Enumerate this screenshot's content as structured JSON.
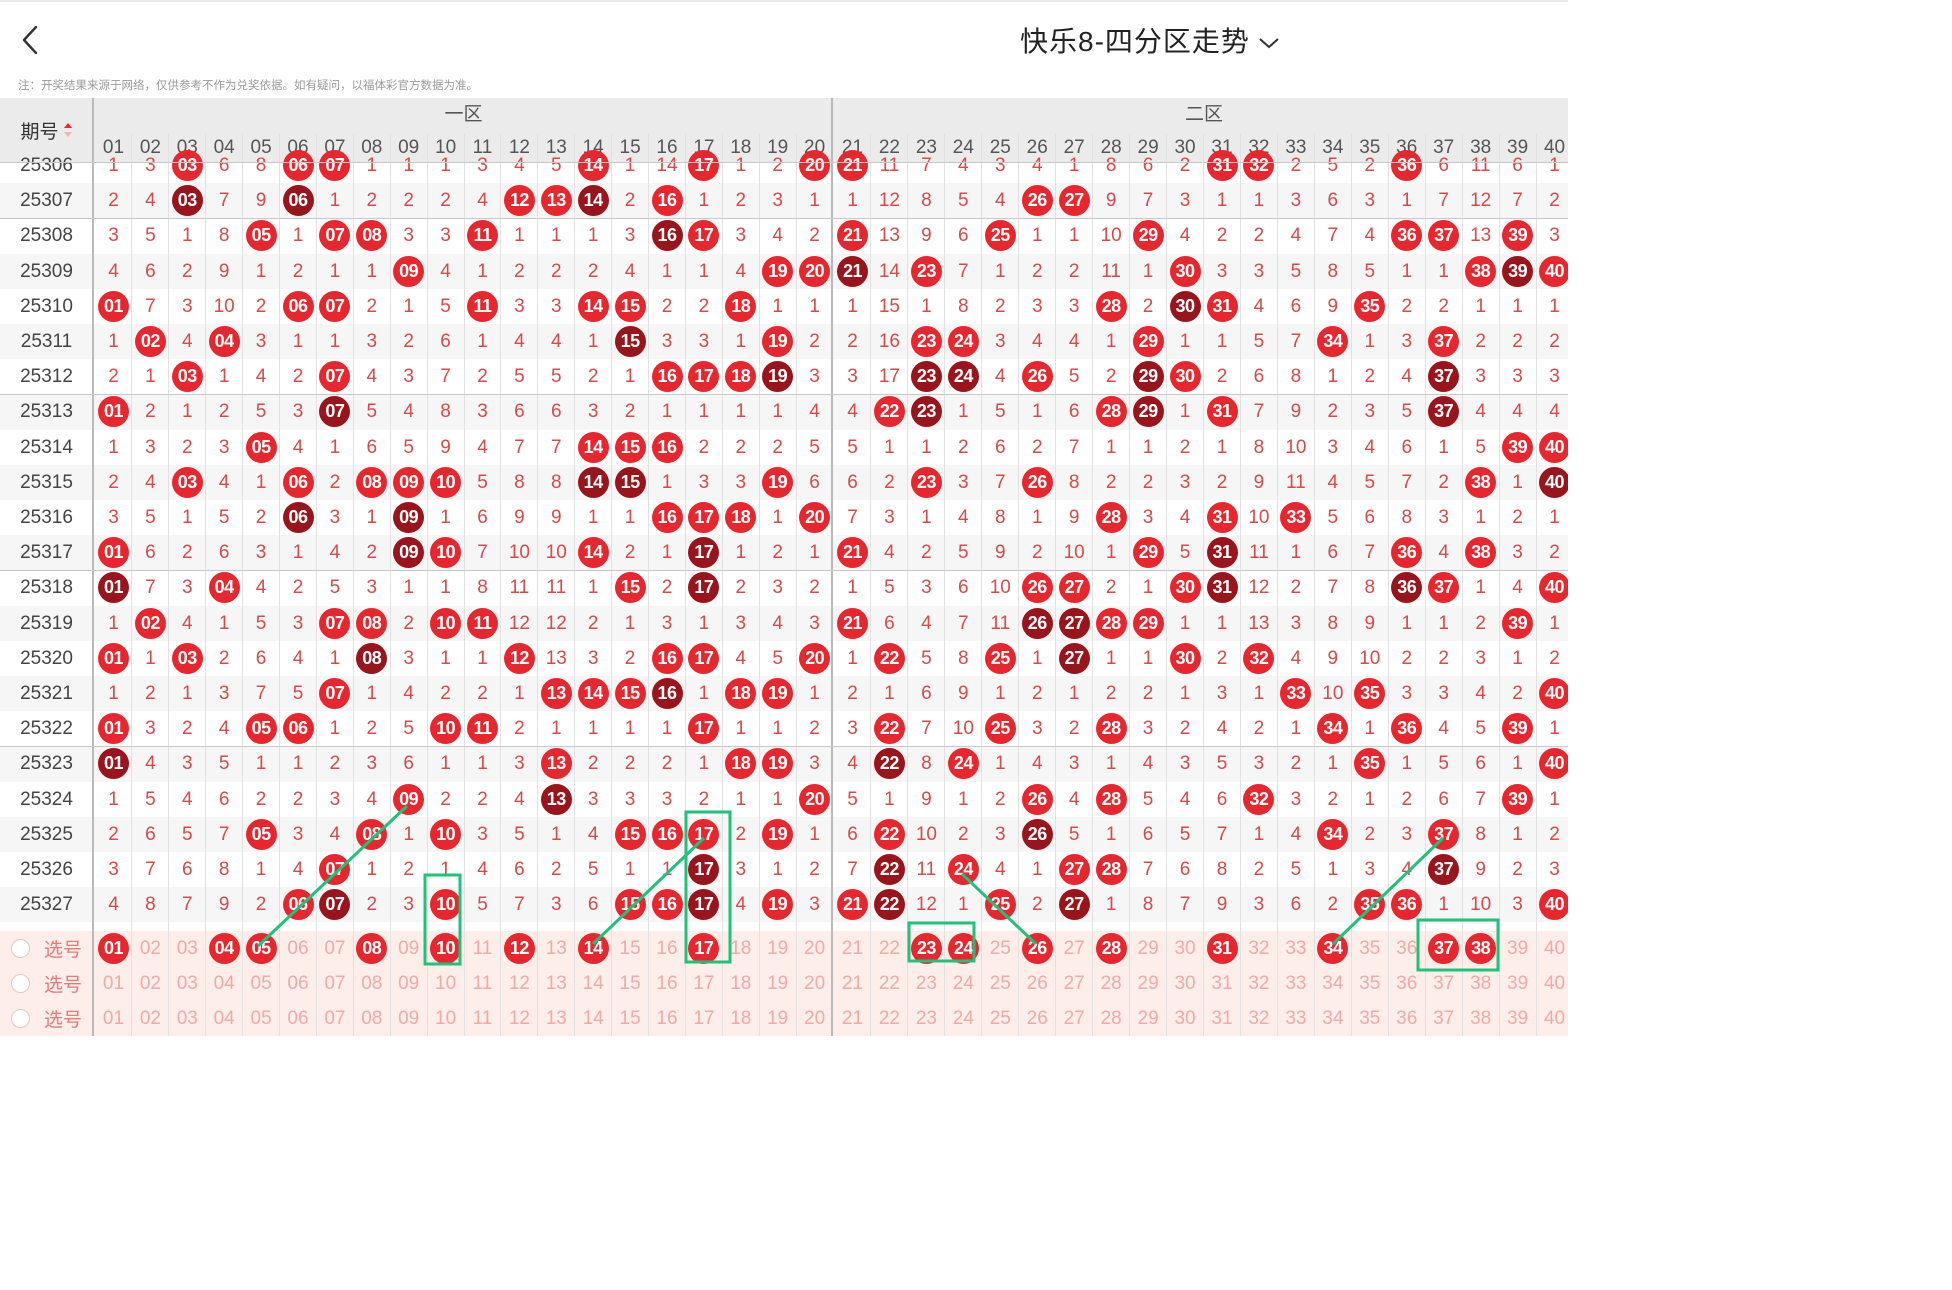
{
  "header": {
    "title": "快乐8-四分区走势"
  },
  "notice": "注：开奖结果来源于网络，仅供参考不作为兑奖依据。如有疑问，以福体彩官方数据为准。",
  "table": {
    "period_header": "期号",
    "zones": [
      "一区",
      "二区"
    ],
    "columns": [
      "01",
      "02",
      "03",
      "04",
      "05",
      "06",
      "07",
      "08",
      "09",
      "10",
      "11",
      "12",
      "13",
      "14",
      "15",
      "16",
      "17",
      "18",
      "19",
      "20",
      "21",
      "22",
      "23",
      "24",
      "25",
      "26",
      "27",
      "28",
      "29",
      "30",
      "31",
      "32",
      "33",
      "34",
      "35",
      "36",
      "37",
      "38",
      "39",
      "40"
    ],
    "rows": [
      {
        "period": "25306",
        "cells": [
          1,
          3,
          "03",
          6,
          8,
          "06",
          "07",
          1,
          1,
          1,
          3,
          4,
          5,
          "14",
          1,
          14,
          "17",
          1,
          2,
          "20",
          "21",
          11,
          7,
          4,
          3,
          4,
          1,
          8,
          6,
          2,
          "31",
          "32",
          2,
          5,
          2,
          "36",
          6,
          11,
          6,
          1
        ]
      },
      {
        "period": "25307",
        "cells": [
          2,
          4,
          "03",
          7,
          9,
          "06",
          1,
          2,
          2,
          2,
          4,
          "12",
          "13",
          "14",
          2,
          "16",
          1,
          2,
          3,
          1,
          1,
          12,
          8,
          5,
          4,
          "26",
          "27",
          9,
          7,
          3,
          1,
          1,
          3,
          6,
          3,
          1,
          7,
          12,
          7,
          2
        ]
      },
      {
        "period": "25308",
        "cells": [
          3,
          5,
          1,
          8,
          "05",
          1,
          "07",
          "08",
          3,
          3,
          "11",
          1,
          1,
          1,
          3,
          "16",
          "17",
          3,
          4,
          2,
          "21",
          13,
          9,
          6,
          "25",
          1,
          1,
          10,
          "29",
          4,
          2,
          2,
          4,
          7,
          4,
          "36",
          "37",
          13,
          "39",
          3
        ]
      },
      {
        "period": "25309",
        "cells": [
          4,
          6,
          2,
          9,
          1,
          2,
          1,
          1,
          "09",
          4,
          1,
          2,
          2,
          2,
          4,
          1,
          1,
          4,
          "19",
          "20",
          "21",
          14,
          "23",
          7,
          1,
          2,
          2,
          11,
          1,
          "30",
          3,
          3,
          5,
          8,
          5,
          1,
          1,
          "38",
          "39",
          "40"
        ]
      },
      {
        "period": "25310",
        "cells": [
          "01",
          7,
          3,
          10,
          2,
          "06",
          "07",
          2,
          1,
          5,
          "11",
          3,
          3,
          "14",
          "15",
          2,
          2,
          "18",
          1,
          1,
          1,
          15,
          1,
          8,
          2,
          3,
          3,
          "28",
          2,
          "30",
          "31",
          4,
          6,
          9,
          "35",
          2,
          2,
          1,
          1,
          1
        ]
      },
      {
        "period": "25311",
        "cells": [
          1,
          "02",
          4,
          "04",
          3,
          1,
          1,
          3,
          2,
          6,
          1,
          4,
          4,
          1,
          "15",
          3,
          3,
          1,
          "19",
          2,
          2,
          16,
          "23",
          "24",
          3,
          4,
          4,
          1,
          "29",
          1,
          1,
          5,
          7,
          "34",
          1,
          3,
          "37",
          2,
          2,
          2
        ]
      },
      {
        "period": "25312",
        "cells": [
          2,
          1,
          "03",
          1,
          4,
          2,
          "07",
          4,
          3,
          7,
          2,
          5,
          5,
          2,
          1,
          "16",
          "17",
          "18",
          "19",
          3,
          3,
          17,
          "23",
          "24",
          4,
          "26",
          5,
          2,
          "29",
          "30",
          2,
          6,
          8,
          1,
          2,
          4,
          "37",
          3,
          3,
          3
        ]
      },
      {
        "period": "25313",
        "cells": [
          "01",
          2,
          1,
          2,
          5,
          3,
          "07",
          5,
          4,
          8,
          3,
          6,
          6,
          3,
          2,
          1,
          1,
          1,
          1,
          4,
          4,
          "22",
          "23",
          1,
          5,
          1,
          6,
          "28",
          "29",
          1,
          "31",
          7,
          9,
          2,
          3,
          5,
          "37",
          4,
          4,
          4
        ]
      },
      {
        "period": "25314",
        "cells": [
          1,
          3,
          2,
          3,
          "05",
          4,
          1,
          6,
          5,
          9,
          4,
          7,
          7,
          "14",
          "15",
          "16",
          2,
          2,
          2,
          5,
          5,
          1,
          1,
          2,
          6,
          2,
          7,
          1,
          1,
          2,
          1,
          8,
          10,
          3,
          4,
          6,
          1,
          5,
          "39",
          "40"
        ]
      },
      {
        "period": "25315",
        "cells": [
          2,
          4,
          "03",
          4,
          1,
          "06",
          2,
          "08",
          "09",
          "10",
          5,
          8,
          8,
          "14",
          "15",
          1,
          3,
          3,
          "19",
          6,
          6,
          2,
          "23",
          3,
          7,
          "26",
          8,
          2,
          2,
          3,
          2,
          9,
          11,
          4,
          5,
          7,
          2,
          "38",
          1,
          "40"
        ]
      },
      {
        "period": "25316",
        "cells": [
          3,
          5,
          1,
          5,
          2,
          "06",
          3,
          1,
          "09",
          1,
          6,
          9,
          9,
          1,
          1,
          "16",
          "17",
          "18",
          1,
          "20",
          7,
          3,
          1,
          4,
          8,
          1,
          9,
          "28",
          3,
          4,
          "31",
          10,
          "33",
          5,
          6,
          8,
          3,
          1,
          2,
          1
        ]
      },
      {
        "period": "25317",
        "cells": [
          "01",
          6,
          2,
          6,
          3,
          1,
          4,
          2,
          "09",
          "10",
          7,
          10,
          10,
          "14",
          2,
          1,
          "17",
          1,
          2,
          1,
          "21",
          4,
          2,
          5,
          9,
          2,
          10,
          1,
          "29",
          5,
          "31",
          11,
          1,
          6,
          7,
          "36",
          4,
          "38",
          3,
          2
        ]
      },
      {
        "period": "25318",
        "cells": [
          "01",
          7,
          3,
          "04",
          4,
          2,
          5,
          3,
          1,
          1,
          8,
          11,
          11,
          1,
          "15",
          2,
          "17",
          2,
          3,
          2,
          1,
          5,
          3,
          6,
          10,
          "26",
          "27",
          2,
          1,
          "30",
          "31",
          12,
          2,
          7,
          8,
          "36",
          "37",
          1,
          4,
          "40"
        ]
      },
      {
        "period": "25319",
        "cells": [
          1,
          "02",
          4,
          1,
          5,
          3,
          "07",
          "08",
          2,
          "10",
          "11",
          12,
          12,
          2,
          1,
          3,
          1,
          3,
          4,
          3,
          "21",
          6,
          4,
          7,
          11,
          "26",
          "27",
          "28",
          "29",
          1,
          1,
          13,
          3,
          8,
          9,
          1,
          1,
          2,
          "39",
          1
        ]
      },
      {
        "period": "25320",
        "cells": [
          "01",
          1,
          "03",
          2,
          6,
          4,
          1,
          "08",
          3,
          1,
          1,
          "12",
          13,
          3,
          2,
          "16",
          "17",
          4,
          5,
          "20",
          1,
          "22",
          5,
          8,
          "25",
          1,
          "27",
          1,
          1,
          "30",
          2,
          "32",
          4,
          9,
          10,
          2,
          2,
          3,
          1,
          2
        ]
      },
      {
        "period": "25321",
        "cells": [
          1,
          2,
          1,
          3,
          7,
          5,
          "07",
          1,
          4,
          2,
          2,
          1,
          "13",
          "14",
          "15",
          "16",
          1,
          "18",
          "19",
          1,
          2,
          1,
          6,
          9,
          1,
          2,
          1,
          2,
          2,
          1,
          3,
          1,
          "33",
          10,
          "35",
          3,
          3,
          4,
          2,
          "40"
        ]
      },
      {
        "period": "25322",
        "cells": [
          "01",
          3,
          2,
          4,
          "05",
          "06",
          1,
          2,
          5,
          "10",
          "11",
          2,
          1,
          1,
          1,
          1,
          "17",
          1,
          1,
          2,
          3,
          "22",
          7,
          10,
          "25",
          3,
          2,
          "28",
          3,
          2,
          4,
          2,
          1,
          "34",
          1,
          "36",
          4,
          5,
          "39",
          1
        ]
      },
      {
        "period": "25323",
        "cells": [
          "01",
          4,
          3,
          5,
          1,
          1,
          2,
          3,
          6,
          1,
          1,
          3,
          "13",
          2,
          2,
          2,
          1,
          "18",
          "19",
          3,
          4,
          "22",
          8,
          "24",
          1,
          4,
          3,
          1,
          4,
          3,
          5,
          3,
          2,
          1,
          "35",
          1,
          5,
          6,
          1,
          "40"
        ]
      },
      {
        "period": "25324",
        "cells": [
          1,
          5,
          4,
          6,
          2,
          2,
          3,
          4,
          "09",
          2,
          2,
          4,
          "13",
          3,
          3,
          3,
          2,
          1,
          1,
          "20",
          5,
          1,
          9,
          1,
          2,
          "26",
          4,
          "28",
          5,
          4,
          6,
          "32",
          3,
          2,
          1,
          2,
          6,
          7,
          "39",
          1
        ]
      },
      {
        "period": "25325",
        "cells": [
          2,
          6,
          5,
          7,
          "05",
          3,
          4,
          "08",
          1,
          "10",
          3,
          5,
          1,
          4,
          "15",
          "16",
          "17",
          2,
          "19",
          1,
          6,
          "22",
          10,
          2,
          3,
          "26",
          5,
          1,
          6,
          5,
          7,
          1,
          4,
          "34",
          2,
          3,
          "37",
          8,
          1,
          2
        ]
      },
      {
        "period": "25326",
        "cells": [
          3,
          7,
          6,
          8,
          1,
          4,
          "07",
          1,
          2,
          1,
          4,
          6,
          2,
          5,
          1,
          1,
          "17",
          3,
          1,
          2,
          7,
          "22",
          11,
          "24",
          4,
          1,
          "27",
          "28",
          7,
          6,
          8,
          2,
          5,
          1,
          3,
          4,
          "37",
          9,
          2,
          3
        ]
      },
      {
        "period": "25327",
        "cells": [
          4,
          8,
          7,
          9,
          2,
          "06",
          "07",
          2,
          3,
          "10",
          5,
          7,
          3,
          6,
          "15",
          "16",
          "17",
          4,
          "19",
          3,
          "21",
          "22",
          12,
          1,
          "25",
          2,
          "27",
          1,
          8,
          7,
          9,
          3,
          6,
          2,
          "35",
          "36",
          1,
          10,
          3,
          "40"
        ]
      }
    ],
    "select_label": "选号",
    "select_rows": [
      {
        "picked": [
          "01",
          "04",
          "05",
          "08",
          "10",
          "12",
          "14",
          "17",
          "23",
          "24",
          "26",
          "28",
          "31",
          "34",
          "37",
          "38"
        ]
      },
      {
        "picked": []
      },
      {
        "picked": []
      }
    ]
  },
  "colors": {
    "ball_red": "#e8262d",
    "ball_dark": "#9a141b",
    "miss_text": "#d7494a",
    "select_bg": "#fdeeea",
    "annotation_green": "#1ec27b"
  },
  "icons": [
    "back-arrow-icon",
    "chevron-down-icon",
    "sort-icon",
    "radio-icon"
  ]
}
